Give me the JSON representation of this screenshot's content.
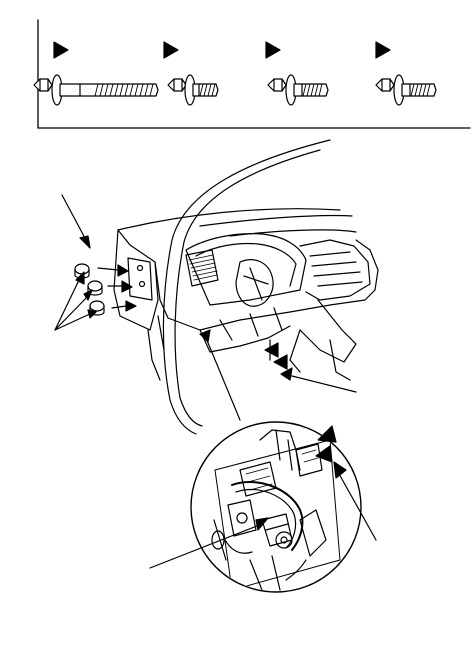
{
  "colors": {
    "ink": "#000000",
    "paper": "#ffffff"
  },
  "legend": {
    "bolts": [
      {
        "marker": "arrowhead-marker",
        "length": "long"
      },
      {
        "marker": "arrowhead-marker",
        "length": "short"
      },
      {
        "marker": "arrowhead-marker",
        "length": "medium"
      },
      {
        "marker": "arrowhead-marker",
        "length": "medium"
      }
    ]
  },
  "illustration": {
    "subject": "dashboard-driver-side-cutaway",
    "callouts": [
      "clip-group-leader",
      "upper-left-leader",
      "lower-right-leader",
      "detail-leader",
      "bottom-left-leader"
    ],
    "detail": "circular-magnified-connector-view"
  }
}
